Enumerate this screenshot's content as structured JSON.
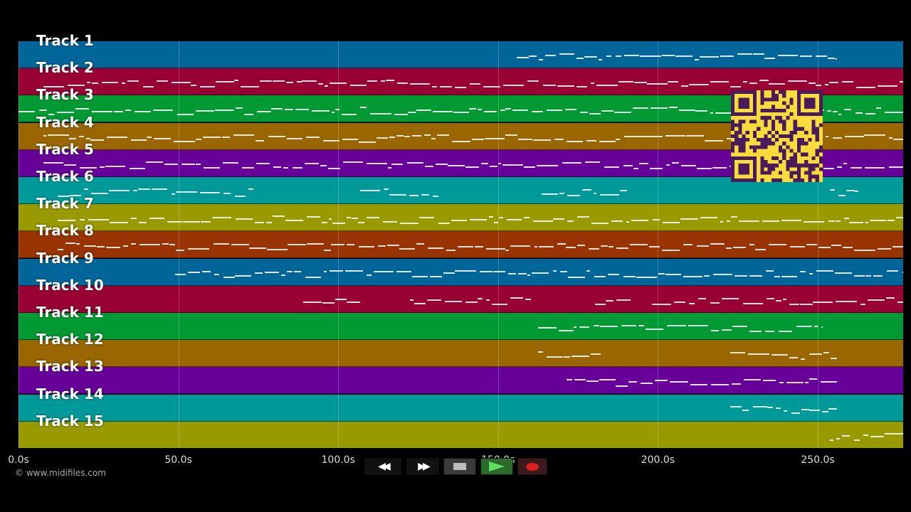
{
  "tracks": [
    {
      "label": "Track 1",
      "color": "#006699"
    },
    {
      "label": "Track 2",
      "color": "#990033"
    },
    {
      "label": "Track 3",
      "color": "#009933"
    },
    {
      "label": "Track 4",
      "color": "#996600"
    },
    {
      "label": "Track 5",
      "color": "#660099"
    },
    {
      "label": "Track 6",
      "color": "#009999"
    },
    {
      "label": "Track 7",
      "color": "#999900"
    },
    {
      "label": "Track 8",
      "color": "#993300"
    },
    {
      "label": "Track 9",
      "color": "#006699"
    },
    {
      "label": "Track 10",
      "color": "#990033"
    },
    {
      "label": "Track 11",
      "color": "#009933"
    },
    {
      "label": "Track 12",
      "color": "#996600"
    },
    {
      "label": "Track 13",
      "color": "#660099"
    },
    {
      "label": "Track 14",
      "color": "#009999"
    },
    {
      "label": "Track 15",
      "color": "#999900"
    }
  ],
  "timeline": {
    "tick_labels": [
      "0.0s",
      "50.0s",
      "100.0s",
      "150.0s",
      "200.0s",
      "250.0s"
    ],
    "tick_values": [
      0,
      50,
      100,
      150,
      200,
      250
    ],
    "end_seconds": 276
  },
  "copyright": "© www.midifiles.com",
  "transport": {
    "rewind_icon": "rewind-icon",
    "forward_icon": "fast-forward-icon",
    "stop_icon": "stop-icon",
    "play_icon": "play-icon",
    "record_icon": "record-icon",
    "play_color": "#3fbf3f",
    "record_color": "#e02020"
  },
  "overlay": {
    "icon": "qr-code-icon",
    "color": "#f8dc3c",
    "module_color": "#4b1a5a"
  }
}
